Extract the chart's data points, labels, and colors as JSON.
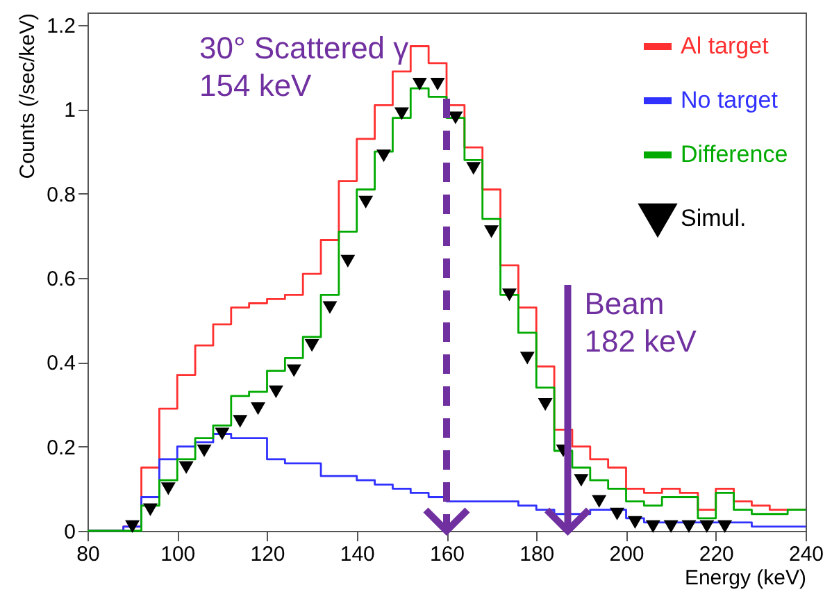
{
  "chart_data": {
    "type": "histogram",
    "xlabel": "Energy (keV)",
    "ylabel": "Counts (/sec/keV)",
    "bins": [
      80,
      84,
      88,
      92,
      96,
      100,
      104,
      108,
      112,
      116,
      120,
      124,
      128,
      132,
      136,
      140,
      144,
      148,
      152,
      156,
      160,
      164,
      168,
      172,
      176,
      180,
      184,
      188,
      192,
      196,
      200,
      204,
      208,
      212,
      216,
      220,
      224,
      228,
      232,
      236,
      240
    ],
    "series": [
      {
        "name": "Al target",
        "color": "#ff3030",
        "values": [
          0,
          0,
          0.01,
          0.15,
          0.29,
          0.37,
          0.44,
          0.49,
          0.53,
          0.54,
          0.55,
          0.56,
          0.61,
          0.69,
          0.83,
          0.93,
          1.01,
          1.09,
          1.15,
          1.11,
          1.01,
          0.91,
          0.81,
          0.63,
          0.53,
          0.39,
          0.24,
          0.2,
          0.17,
          0.15,
          0.1,
          0.09,
          0.1,
          0.09,
          0.05,
          0.1,
          0.07,
          0.06,
          0.05,
          0.05
        ]
      },
      {
        "name": "No target",
        "color": "#3030ff",
        "values": [
          0,
          0,
          0.01,
          0.08,
          0.17,
          0.2,
          0.21,
          0.23,
          0.22,
          0.22,
          0.17,
          0.16,
          0.16,
          0.13,
          0.13,
          0.12,
          0.11,
          0.1,
          0.09,
          0.08,
          0.07,
          0.07,
          0.07,
          0.07,
          0.06,
          0.05,
          0.04,
          0.04,
          0.05,
          0.05,
          0.03,
          0.02,
          0.02,
          0.02,
          0.02,
          0.02,
          0.02,
          0.01,
          0.01,
          0.01
        ]
      },
      {
        "name": "Difference",
        "color": "#00aa00",
        "values": [
          0,
          0,
          0,
          0.06,
          0.12,
          0.17,
          0.22,
          0.25,
          0.32,
          0.33,
          0.38,
          0.41,
          0.46,
          0.56,
          0.71,
          0.81,
          0.9,
          0.98,
          1.05,
          1.03,
          0.98,
          0.88,
          0.74,
          0.56,
          0.47,
          0.34,
          0.19,
          0.15,
          0.12,
          0.1,
          0.07,
          0.06,
          0.08,
          0.08,
          0.03,
          0.09,
          0.05,
          0.04,
          0.04,
          0.05
        ]
      },
      {
        "name": "Simul.",
        "type": "scatter",
        "marker": "triangle",
        "color": "#000000",
        "x": [
          90,
          94,
          98,
          102,
          106,
          110,
          114,
          118,
          122,
          126,
          130,
          134,
          138,
          142,
          146,
          150,
          154,
          158,
          162,
          166,
          170,
          174,
          178,
          182,
          186,
          190,
          194,
          198,
          202,
          206,
          210,
          214,
          218,
          222
        ],
        "values": [
          0.01,
          0.05,
          0.1,
          0.15,
          0.19,
          0.23,
          0.26,
          0.29,
          0.33,
          0.38,
          0.44,
          0.53,
          0.64,
          0.78,
          0.89,
          0.99,
          1.06,
          1.06,
          0.98,
          0.86,
          0.71,
          0.56,
          0.41,
          0.3,
          0.19,
          0.12,
          0.07,
          0.04,
          0.02,
          0.01,
          0.01,
          0.01,
          0.01,
          0.01
        ]
      }
    ],
    "xlim": [
      80,
      240
    ],
    "xticks": [
      80,
      100,
      120,
      140,
      160,
      180,
      200,
      220,
      240
    ],
    "ylim": [
      0,
      1.23
    ],
    "yticks": [
      0,
      0.2,
      0.4,
      0.6,
      0.8,
      1,
      1.2
    ],
    "legend": "top right",
    "ref_lines": [
      {
        "axis": "x",
        "value": 160,
        "label": "30° Scattered γ\n154 keV",
        "color": "#7030a0",
        "line_style": "dashed"
      },
      {
        "axis": "x",
        "value": 187,
        "label": "Beam\n182 keV",
        "color": "#7030a0",
        "line_style": "solid"
      }
    ]
  }
}
